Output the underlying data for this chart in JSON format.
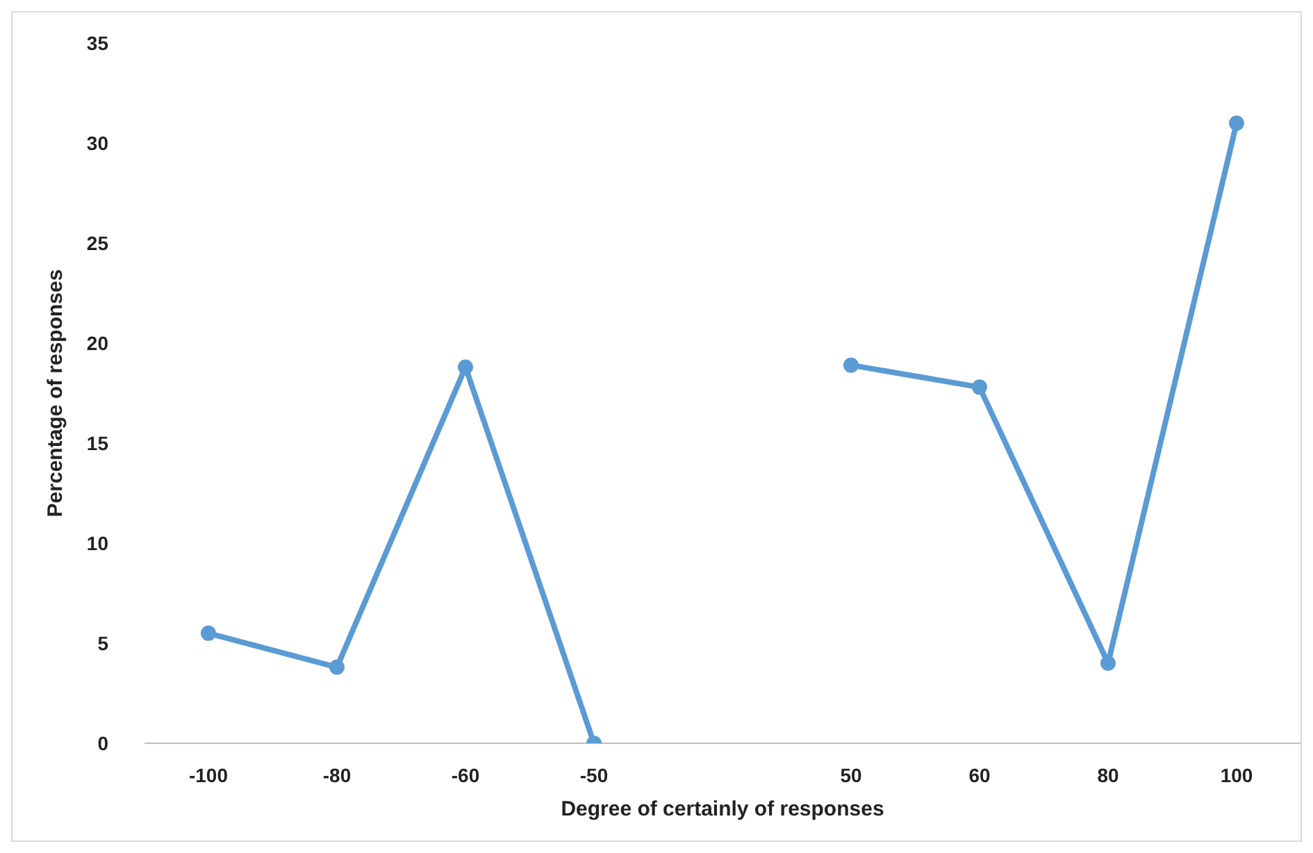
{
  "chart_data": {
    "type": "line",
    "xlabel": "Degree of certainly of responses",
    "ylabel": "Percentage of responses",
    "categories": [
      "-100",
      "-80",
      "-60",
      "-50",
      null,
      "50",
      "60",
      "80",
      "100"
    ],
    "series": [
      {
        "color": "#5b9bd5",
        "values": [
          5.5,
          3.8,
          18.8,
          0,
          null,
          18.9,
          17.8,
          4,
          31
        ]
      }
    ],
    "ylim": [
      0,
      35
    ],
    "yticks": [
      0,
      5,
      10,
      15,
      20,
      25,
      30,
      35
    ],
    "grid": false,
    "legend": false,
    "marker": "circle",
    "line_style": "solid"
  }
}
